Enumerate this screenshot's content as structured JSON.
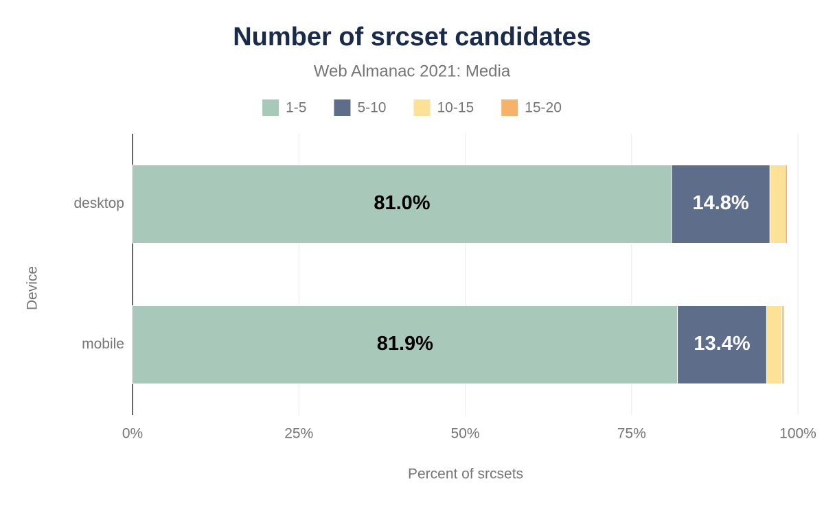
{
  "chart_data": {
    "type": "stacked-bar-horizontal",
    "title": "Number of srcset candidates",
    "subtitle": "Web Almanac 2021: Media",
    "x_label": "Percent of srcsets",
    "y_label": "Device",
    "categories": [
      "desktop",
      "mobile"
    ],
    "series": [
      {
        "name": "1-5",
        "color": "#a8c9b9",
        "label_color": "#000000",
        "values": [
          81.0,
          81.9
        ],
        "value_labels": [
          "81.0%",
          "81.9%"
        ]
      },
      {
        "name": "5-10",
        "color": "#5d6d8a",
        "label_color": "#ffffff",
        "values": [
          14.8,
          13.4
        ],
        "value_labels": [
          "14.8%",
          "13.4%"
        ]
      },
      {
        "name": "10-15",
        "color": "#fde196",
        "values": [
          2.3,
          2.3
        ]
      },
      {
        "name": "15-20",
        "color": "#f5b26b",
        "values": [
          0.3,
          0.3
        ]
      }
    ],
    "xlim": [
      0,
      100
    ],
    "xticks": [
      {
        "value": 0,
        "label": "0%"
      },
      {
        "value": 25,
        "label": "25%"
      },
      {
        "value": 50,
        "label": "50%"
      },
      {
        "value": 75,
        "label": "75%"
      },
      {
        "value": 100,
        "label": "100%"
      }
    ],
    "grid": true,
    "legend": "top"
  }
}
